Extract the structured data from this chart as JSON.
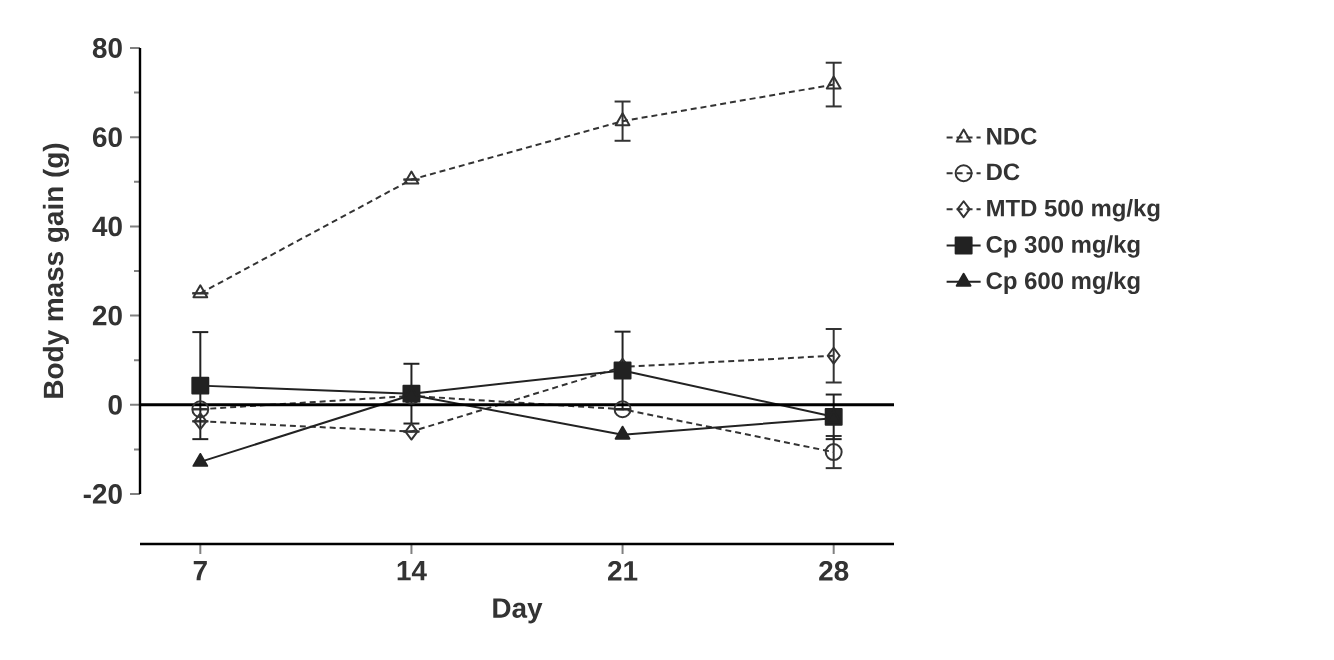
{
  "chart_data": {
    "type": "line",
    "xlabel": "Day",
    "ylabel": "Body mass gain (g)",
    "x": [
      7,
      14,
      21,
      28
    ],
    "xlim": [
      5,
      30
    ],
    "xticks": [
      7,
      14,
      21,
      28
    ],
    "ylim": [
      -20,
      80
    ],
    "yticks": [
      -20,
      0,
      20,
      40,
      60,
      80
    ],
    "legend": "right",
    "ref_lines": [
      {
        "axis": "y",
        "value": 0,
        "color": "#000000",
        "line_style": "solid"
      }
    ],
    "series": [
      {
        "name": "NDC",
        "color": "#333333",
        "marker": "triangle",
        "line_style": "dashed",
        "values": [
          25,
          50.5,
          63.6,
          71.8
        ],
        "errors": [
          null,
          null,
          4.4,
          4.9
        ]
      },
      {
        "name": "DC",
        "color": "#333333",
        "marker": "circle",
        "line_style": "dashed",
        "values": [
          -1,
          2,
          -1,
          -10.6
        ],
        "errors": [
          null,
          null,
          null,
          3.6
        ]
      },
      {
        "name": "MTD 500 mg/kg",
        "color": "#333333",
        "marker": "diamond",
        "line_style": "dashed",
        "values": [
          -3.7,
          -6,
          8.5,
          11
        ],
        "errors": [
          null,
          null,
          null,
          6
        ]
      },
      {
        "name": "Cp 300 mg/kg",
        "color": "#222222",
        "marker": "square",
        "line_style": "solid",
        "values": [
          4.3,
          2.5,
          7.7,
          -2.7
        ],
        "errors": [
          12,
          6.7,
          8.7,
          5
        ]
      },
      {
        "name": "Cp 600 mg/kg",
        "color": "#222222",
        "marker": "triangle",
        "line_style": "solid",
        "values": [
          -12.8,
          2.2,
          -6.7,
          -3
        ]
      }
    ]
  }
}
